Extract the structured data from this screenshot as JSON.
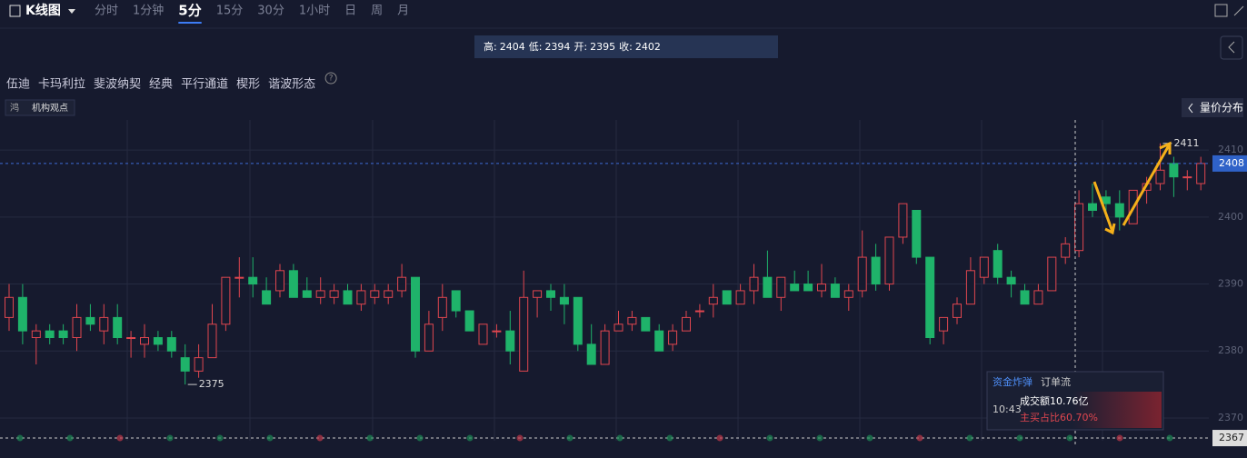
{
  "toolbar": {
    "title": "K线图",
    "periods": [
      "分时",
      "1分钟",
      "5分",
      "15分",
      "30分",
      "1小时",
      "日",
      "周",
      "月"
    ],
    "active": "5分"
  },
  "header": {
    "high_label": "高:",
    "high": 2404,
    "low_label": "低:",
    "low": 2394,
    "open_label": "开:",
    "open": 2395,
    "close_label": "收:",
    "close": 2402
  },
  "tools": [
    "伍迪",
    "卡玛利拉",
    "斐波纳契",
    "经典",
    "平行通道",
    "楔形",
    "谐波形态"
  ],
  "help": "?",
  "tag": {
    "icon": "鸿",
    "label": "机构观点"
  },
  "side_button": "量价分布",
  "info_box": {
    "tabs": [
      "资金炸弹",
      "订单流"
    ],
    "time": "10:43",
    "turnover": "成交额10.76亿",
    "buy_ratio": "主买占比60.70%"
  },
  "chart_data": {
    "type": "candlestick",
    "open": [
      2385,
      2388,
      2382,
      2383,
      2383,
      2382,
      2385,
      2383,
      2385,
      2382,
      2381,
      2382,
      2382,
      2379,
      2377,
      2379,
      2384,
      2391,
      2391,
      2389,
      2389,
      2392,
      2389,
      2388,
      2388,
      2389,
      2387,
      2388,
      2388,
      2389,
      2391,
      2380,
      2385,
      2389,
      2386,
      2381,
      2383,
      2383,
      2377,
      2388,
      2389,
      2388,
      2388,
      2381,
      2378,
      2383,
      2384,
      2385,
      2383,
      2381,
      2383,
      2386,
      2387,
      2389,
      2387,
      2389,
      2391,
      2388,
      2390,
      2390,
      2389,
      2390,
      2388,
      2389,
      2394,
      2390,
      2397,
      2401,
      2394,
      2383,
      2385,
      2387,
      2391,
      2395,
      2391,
      2389,
      2387,
      2389,
      2394,
      2395,
      2402,
      2403,
      2402,
      2399,
      2404,
      2405,
      2408,
      2406,
      2405
    ],
    "high": [
      2390,
      2390,
      2384,
      2384,
      2384,
      2387,
      2387,
      2387,
      2387,
      2383,
      2384,
      2383,
      2383,
      2381,
      2381,
      2387,
      2391,
      2394,
      2394,
      2391,
      2393,
      2393,
      2391,
      2391,
      2390,
      2390,
      2390,
      2390,
      2390,
      2393,
      2391,
      2386,
      2390,
      2389,
      2386,
      2384,
      2384,
      2386,
      2392,
      2389,
      2390,
      2390,
      2388,
      2384,
      2384,
      2386,
      2386,
      2385,
      2384,
      2384,
      2386,
      2387,
      2390,
      2389,
      2390,
      2393,
      2395,
      2391,
      2392,
      2392,
      2393,
      2391,
      2390,
      2398,
      2396,
      2397,
      2402,
      2401,
      2394,
      2385,
      2388,
      2394,
      2394,
      2396,
      2392,
      2390,
      2390,
      2394,
      2397,
      2404,
      2405,
      2404,
      2404,
      2404,
      2406,
      2411,
      2409,
      2407,
      2409
    ],
    "low": [
      2383,
      2381,
      2378,
      2381,
      2381,
      2380,
      2383,
      2381,
      2381,
      2379,
      2379,
      2380,
      2379,
      2375,
      2376,
      2379,
      2383,
      2388,
      2388,
      2387,
      2388,
      2388,
      2388,
      2387,
      2387,
      2387,
      2386,
      2387,
      2387,
      2388,
      2379,
      2380,
      2383,
      2385,
      2383,
      2381,
      2382,
      2378,
      2377,
      2385,
      2386,
      2384,
      2380,
      2378,
      2378,
      2383,
      2383,
      2383,
      2380,
      2380,
      2383,
      2385,
      2385,
      2387,
      2387,
      2387,
      2388,
      2386,
      2389,
      2389,
      2388,
      2388,
      2386,
      2388,
      2389,
      2389,
      2396,
      2393,
      2381,
      2381,
      2384,
      2387,
      2390,
      2390,
      2388,
      2387,
      2387,
      2389,
      2393,
      2394,
      2400,
      2400,
      2398,
      2399,
      2402,
      2404,
      2403,
      2404,
      2404
    ],
    "close": [
      2388,
      2383,
      2383,
      2382,
      2382,
      2385,
      2384,
      2385,
      2382,
      2382,
      2382,
      2381,
      2380,
      2377,
      2379,
      2384,
      2391,
      2391,
      2390,
      2387,
      2392,
      2388,
      2388,
      2389,
      2389,
      2387,
      2389,
      2389,
      2389,
      2391,
      2380,
      2384,
      2388,
      2386,
      2383,
      2384,
      2383,
      2380,
      2388,
      2389,
      2388,
      2387,
      2381,
      2378,
      2383,
      2384,
      2385,
      2383,
      2380,
      2383,
      2385,
      2386,
      2388,
      2387,
      2389,
      2391,
      2388,
      2391,
      2389,
      2389,
      2390,
      2388,
      2389,
      2394,
      2390,
      2397,
      2402,
      2394,
      2382,
      2385,
      2387,
      2392,
      2394,
      2391,
      2390,
      2387,
      2389,
      2394,
      2396,
      2402,
      2401,
      2402,
      2400,
      2404,
      2405,
      2407,
      2406,
      2406,
      2408
    ],
    "up_color": "#e0464f",
    "down_color": "#1fb36a",
    "ylim": [
      2366.6,
      2414.5
    ],
    "yticks": [
      2370,
      2380,
      2390,
      2400,
      2410
    ],
    "last_price": 2408,
    "bottom_price": 2367,
    "annotations": [
      {
        "label": "2375",
        "value": 2375,
        "index": 13
      },
      {
        "label": "2411",
        "value": 2411,
        "index": 85
      }
    ]
  }
}
